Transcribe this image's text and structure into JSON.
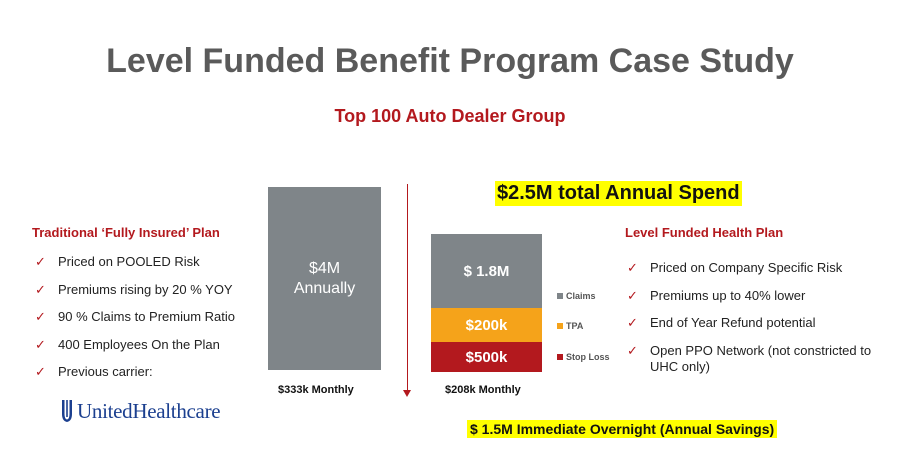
{
  "title": "Level Funded Benefit Program Case Study",
  "subtitle": "Top 100 Auto Dealer Group",
  "left": {
    "heading": "Traditional ‘Fully Insured’ Plan",
    "items": [
      "Priced on POOLED Risk",
      "Premiums rising by 20 % YOY",
      "90 % Claims to Premium Ratio",
      "400 Employees On the Plan",
      "Previous carrier:"
    ],
    "logo_text": "UnitedHealthcare"
  },
  "right": {
    "heading": "Level Funded Health Plan",
    "items": [
      "Priced on Company Specific Risk",
      "Premiums up to 40% lower",
      "End of Year Refund potential",
      "Open PPO Network (not constricted to UHC only)"
    ]
  },
  "check_glyph": "✓",
  "highlights": {
    "annual_spend": "$2.5M total Annual Spend",
    "savings": "$ 1.5M Immediate Overnight (Annual Savings)"
  },
  "bars": {
    "traditional": {
      "label_line1": "$4M",
      "label_line2": "Annually",
      "monthly": "$333k Monthly",
      "value_musd": 4.0
    },
    "level_funded": {
      "monthly": "$208k Monthly",
      "segments": [
        {
          "key": "claims",
          "label": "$ 1.8M",
          "legend": "Claims",
          "color": "#7f8589"
        },
        {
          "key": "tpa",
          "label": "$200k",
          "legend": "TPA",
          "color": "#f5a31a"
        },
        {
          "key": "stop_loss",
          "label": "$500k",
          "legend": "Stop Loss",
          "color": "#b3191e"
        }
      ]
    }
  },
  "colors": {
    "title": "#5a5a5a",
    "accent_red": "#b3191e",
    "bar_gray": "#7f8589",
    "tpa_orange": "#f5a31a",
    "highlight_yellow": "#ffff00",
    "logo_blue": "#1b3f8f"
  }
}
